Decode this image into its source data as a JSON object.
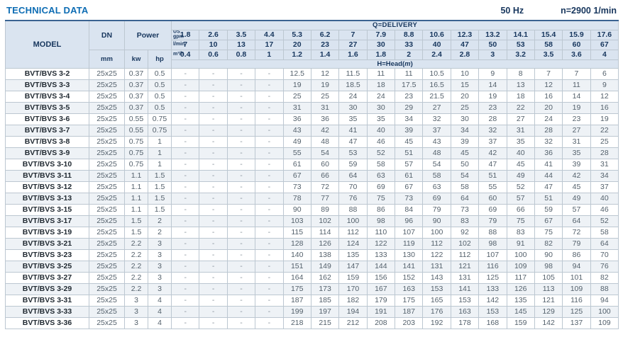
{
  "page": {
    "title": "TECHNICAL DATA",
    "frequency": "50 Hz",
    "speed": "n=2900 1/min"
  },
  "table": {
    "headers": {
      "model": "MODEL",
      "dn": "DN",
      "dn_unit": "mm",
      "power": "Power",
      "kw": "kw",
      "hp": "hp",
      "delivery": "Q=DELIVERY",
      "head_prefix": "H=Head(",
      "head_italic": "m",
      "head_suffix": ")",
      "us_line1": "US",
      "us_line2": "gpm",
      "lmin_label": "l/min",
      "m3h_label": "m³/h"
    },
    "us_gpm": [
      "1.8",
      "2.6",
      "3.5",
      "4.4",
      "5.3",
      "6.2",
      "7",
      "7.9",
      "8.8",
      "10.6",
      "12.3",
      "13.2",
      "14.1",
      "15.4",
      "15.9",
      "17.6"
    ],
    "l_min": [
      "7",
      "10",
      "13",
      "17",
      "20",
      "23",
      "27",
      "30",
      "33",
      "40",
      "47",
      "50",
      "53",
      "58",
      "60",
      "67"
    ],
    "m3_h": [
      "0.4",
      "0.6",
      "0.8",
      "1",
      "1.2",
      "1.4",
      "1.6",
      "1.8",
      "2",
      "2.4",
      "2.8",
      "3",
      "3.2",
      "3.5",
      "3.6",
      "4"
    ],
    "rows": [
      {
        "model": "BVT/BVS 3-2",
        "dn": "25x25",
        "kw": "0.37",
        "hp": "0.5",
        "values": [
          "-",
          "-",
          "-",
          "-",
          "12.5",
          "12",
          "11.5",
          "11",
          "11",
          "10.5",
          "10",
          "9",
          "8",
          "7",
          "7",
          "6"
        ]
      },
      {
        "model": "BVT/BVS 3-3",
        "dn": "25x25",
        "kw": "0.37",
        "hp": "0.5",
        "values": [
          "-",
          "-",
          "-",
          "-",
          "19",
          "19",
          "18.5",
          "18",
          "17.5",
          "16.5",
          "15",
          "14",
          "13",
          "12",
          "11",
          "9"
        ]
      },
      {
        "model": "BVT/BVS 3-4",
        "dn": "25x25",
        "kw": "0.37",
        "hp": "0.5",
        "values": [
          "-",
          "-",
          "-",
          "-",
          "25",
          "25",
          "24",
          "24",
          "23",
          "21.5",
          "20",
          "19",
          "18",
          "16",
          "14",
          "12"
        ]
      },
      {
        "model": "BVT/BVS 3-5",
        "dn": "25x25",
        "kw": "0.37",
        "hp": "0.5",
        "values": [
          "-",
          "-",
          "-",
          "-",
          "31",
          "31",
          "30",
          "30",
          "29",
          "27",
          "25",
          "23",
          "22",
          "20",
          "19",
          "16"
        ]
      },
      {
        "model": "BVT/BVS 3-6",
        "dn": "25x25",
        "kw": "0.55",
        "hp": "0.75",
        "values": [
          "-",
          "-",
          "-",
          "-",
          "36",
          "36",
          "35",
          "35",
          "34",
          "32",
          "30",
          "28",
          "27",
          "24",
          "23",
          "19"
        ]
      },
      {
        "model": "BVT/BVS 3-7",
        "dn": "25x25",
        "kw": "0.55",
        "hp": "0.75",
        "values": [
          "-",
          "-",
          "-",
          "-",
          "43",
          "42",
          "41",
          "40",
          "39",
          "37",
          "34",
          "32",
          "31",
          "28",
          "27",
          "22"
        ]
      },
      {
        "model": "BVT/BVS 3-8",
        "dn": "25x25",
        "kw": "0.75",
        "hp": "1",
        "values": [
          "-",
          "-",
          "-",
          "-",
          "49",
          "48",
          "47",
          "46",
          "45",
          "43",
          "39",
          "37",
          "35",
          "32",
          "31",
          "25"
        ]
      },
      {
        "model": "BVT/BVS 3-9",
        "dn": "25x25",
        "kw": "0.75",
        "hp": "1",
        "values": [
          "-",
          "-",
          "-",
          "-",
          "55",
          "54",
          "53",
          "52",
          "51",
          "48",
          "45",
          "42",
          "40",
          "36",
          "35",
          "28"
        ]
      },
      {
        "model": "BVT/BVS 3-10",
        "dn": "25x25",
        "kw": "0.75",
        "hp": "1",
        "values": [
          "-",
          "-",
          "-",
          "-",
          "61",
          "60",
          "59",
          "58",
          "57",
          "54",
          "50",
          "47",
          "45",
          "41",
          "39",
          "31"
        ]
      },
      {
        "model": "BVT/BVS 3-11",
        "dn": "25x25",
        "kw": "1.1",
        "hp": "1.5",
        "values": [
          "-",
          "-",
          "-",
          "-",
          "67",
          "66",
          "64",
          "63",
          "61",
          "58",
          "54",
          "51",
          "49",
          "44",
          "42",
          "34"
        ]
      },
      {
        "model": "BVT/BVS 3-12",
        "dn": "25x25",
        "kw": "1.1",
        "hp": "1.5",
        "values": [
          "-",
          "-",
          "-",
          "-",
          "73",
          "72",
          "70",
          "69",
          "67",
          "63",
          "58",
          "55",
          "52",
          "47",
          "45",
          "37"
        ]
      },
      {
        "model": "BVT/BVS 3-13",
        "dn": "25x25",
        "kw": "1.1",
        "hp": "1.5",
        "values": [
          "-",
          "-",
          "-",
          "-",
          "78",
          "77",
          "76",
          "75",
          "73",
          "69",
          "64",
          "60",
          "57",
          "51",
          "49",
          "40"
        ]
      },
      {
        "model": "BVT/BVS 3-15",
        "dn": "25x25",
        "kw": "1.1",
        "hp": "1.5",
        "values": [
          "-",
          "-",
          "-",
          "-",
          "90",
          "89",
          "88",
          "86",
          "84",
          "79",
          "73",
          "69",
          "66",
          "59",
          "57",
          "46"
        ]
      },
      {
        "model": "BVT/BVS 3-17",
        "dn": "25x25",
        "kw": "1.5",
        "hp": "2",
        "values": [
          "-",
          "-",
          "-",
          "-",
          "103",
          "102",
          "100",
          "98",
          "96",
          "90",
          "83",
          "79",
          "75",
          "67",
          "64",
          "52"
        ]
      },
      {
        "model": "BVT/BVS 3-19",
        "dn": "25x25",
        "kw": "1.5",
        "hp": "2",
        "values": [
          "-",
          "-",
          "-",
          "-",
          "115",
          "114",
          "112",
          "110",
          "107",
          "100",
          "92",
          "88",
          "83",
          "75",
          "72",
          "58"
        ]
      },
      {
        "model": "BVT/BVS 3-21",
        "dn": "25x25",
        "kw": "2.2",
        "hp": "3",
        "values": [
          "-",
          "-",
          "-",
          "-",
          "128",
          "126",
          "124",
          "122",
          "119",
          "112",
          "102",
          "98",
          "91",
          "82",
          "79",
          "64"
        ]
      },
      {
        "model": "BVT/BVS 3-23",
        "dn": "25x25",
        "kw": "2.2",
        "hp": "3",
        "values": [
          "-",
          "-",
          "-",
          "-",
          "140",
          "138",
          "135",
          "133",
          "130",
          "122",
          "112",
          "107",
          "100",
          "90",
          "86",
          "70"
        ]
      },
      {
        "model": "BVT/BVS 3-25",
        "dn": "25x25",
        "kw": "2.2",
        "hp": "3",
        "values": [
          "-",
          "-",
          "-",
          "-",
          "151",
          "149",
          "147",
          "144",
          "141",
          "131",
          "121",
          "116",
          "109",
          "98",
          "94",
          "76"
        ]
      },
      {
        "model": "BVT/BVS 3-27",
        "dn": "25x25",
        "kw": "2.2",
        "hp": "3",
        "values": [
          "-",
          "-",
          "-",
          "-",
          "164",
          "162",
          "159",
          "156",
          "152",
          "143",
          "131",
          "125",
          "117",
          "105",
          "101",
          "82"
        ]
      },
      {
        "model": "BVT/BVS 3-29",
        "dn": "25x25",
        "kw": "2.2",
        "hp": "3",
        "values": [
          "-",
          "-",
          "-",
          "-",
          "175",
          "173",
          "170",
          "167",
          "163",
          "153",
          "141",
          "133",
          "126",
          "113",
          "109",
          "88"
        ]
      },
      {
        "model": "BVT/BVS 3-31",
        "dn": "25x25",
        "kw": "3",
        "hp": "4",
        "values": [
          "-",
          "-",
          "-",
          "-",
          "187",
          "185",
          "182",
          "179",
          "175",
          "165",
          "153",
          "142",
          "135",
          "121",
          "116",
          "94"
        ]
      },
      {
        "model": "BVT/BVS 3-33",
        "dn": "25x25",
        "kw": "3",
        "hp": "4",
        "values": [
          "-",
          "-",
          "-",
          "-",
          "199",
          "197",
          "194",
          "191",
          "187",
          "176",
          "163",
          "153",
          "145",
          "129",
          "125",
          "100"
        ]
      },
      {
        "model": "BVT/BVS 3-36",
        "dn": "25x25",
        "kw": "3",
        "hp": "4",
        "values": [
          "-",
          "-",
          "-",
          "-",
          "218",
          "215",
          "212",
          "208",
          "203",
          "192",
          "178",
          "168",
          "159",
          "142",
          "137",
          "109"
        ]
      }
    ]
  }
}
